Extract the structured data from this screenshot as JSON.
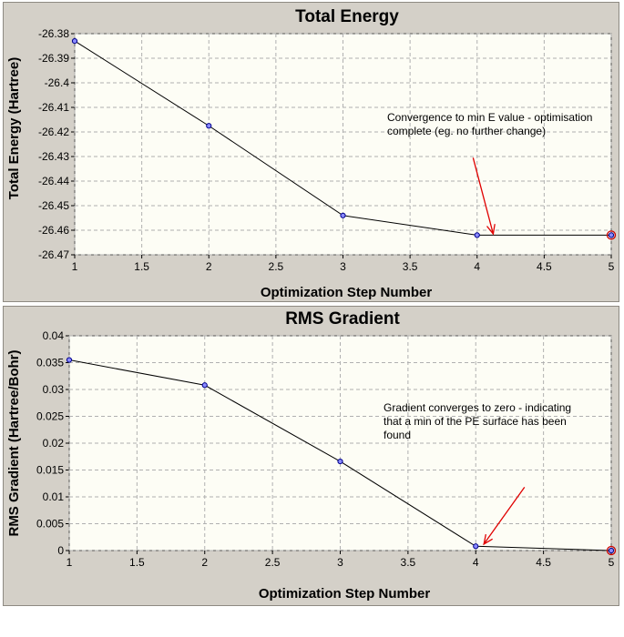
{
  "chart_data": [
    {
      "type": "line",
      "title": "Total Energy",
      "xlabel": "Optimization Step Number",
      "ylabel": "Total Energy (Hartree)",
      "x": [
        1,
        2,
        3,
        4,
        5
      ],
      "series": [
        {
          "name": "Total Energy",
          "values": [
            -26.383,
            -26.4175,
            -26.454,
            -26.462,
            -26.462
          ]
        }
      ],
      "xlim": [
        1,
        5
      ],
      "ylim": [
        -26.47,
        -26.38
      ],
      "xticks": [
        1,
        1.5,
        2,
        2.5,
        3,
        3.5,
        4,
        4.5,
        5
      ],
      "xtick_labels": [
        "1",
        "1.5",
        "2",
        "2.5",
        "3",
        "3.5",
        "4",
        "4.5",
        "5"
      ],
      "yticks": [
        -26.38,
        -26.39,
        -26.4,
        -26.41,
        -26.42,
        -26.43,
        -26.44,
        -26.45,
        -26.46,
        -26.47
      ],
      "ytick_labels": [
        "-26.38",
        "-26.39",
        "-26.4",
        "-26.41",
        "-26.42",
        "-26.43",
        "-26.44",
        "-26.45",
        "-26.46",
        "-26.47"
      ],
      "grid": true,
      "annotation": {
        "lines": [
          "Convergence to min E value - optimisation",
          "complete (eg. no further change)"
        ],
        "arrow_target": {
          "x": 4.12,
          "y": -26.4615
        },
        "arrow_tail": {
          "x": 3.97,
          "y": -26.4305
        }
      }
    },
    {
      "type": "line",
      "title": "RMS Gradient",
      "xlabel": "Optimization Step Number",
      "ylabel": "RMS Gradient (Hartree/Bohr)",
      "x": [
        1,
        2,
        3,
        4,
        5
      ],
      "series": [
        {
          "name": "RMS Gradient",
          "values": [
            0.0355,
            0.0308,
            0.0166,
            0.0008,
            0.0
          ]
        }
      ],
      "xlim": [
        1,
        5
      ],
      "ylim": [
        0,
        0.04
      ],
      "xticks": [
        1,
        1.5,
        2,
        2.5,
        3,
        3.5,
        4,
        4.5,
        5
      ],
      "xtick_labels": [
        "1",
        "1.5",
        "2",
        "2.5",
        "3",
        "3.5",
        "4",
        "4.5",
        "5"
      ],
      "yticks": [
        0,
        0.005,
        0.01,
        0.015,
        0.02,
        0.025,
        0.03,
        0.035,
        0.04
      ],
      "ytick_labels": [
        "0",
        "0.005",
        "0.01",
        "0.015",
        "0.02",
        "0.025",
        "0.03",
        "0.035",
        "0.04"
      ],
      "grid": true,
      "annotation": {
        "lines": [
          "Gradient converges to zero - indicating",
          "that a min of the PE surface has been",
          "found"
        ],
        "arrow_target": {
          "x": 4.06,
          "y": 0.0012
        },
        "arrow_tail": {
          "x": 4.36,
          "y": 0.0118
        }
      }
    }
  ]
}
